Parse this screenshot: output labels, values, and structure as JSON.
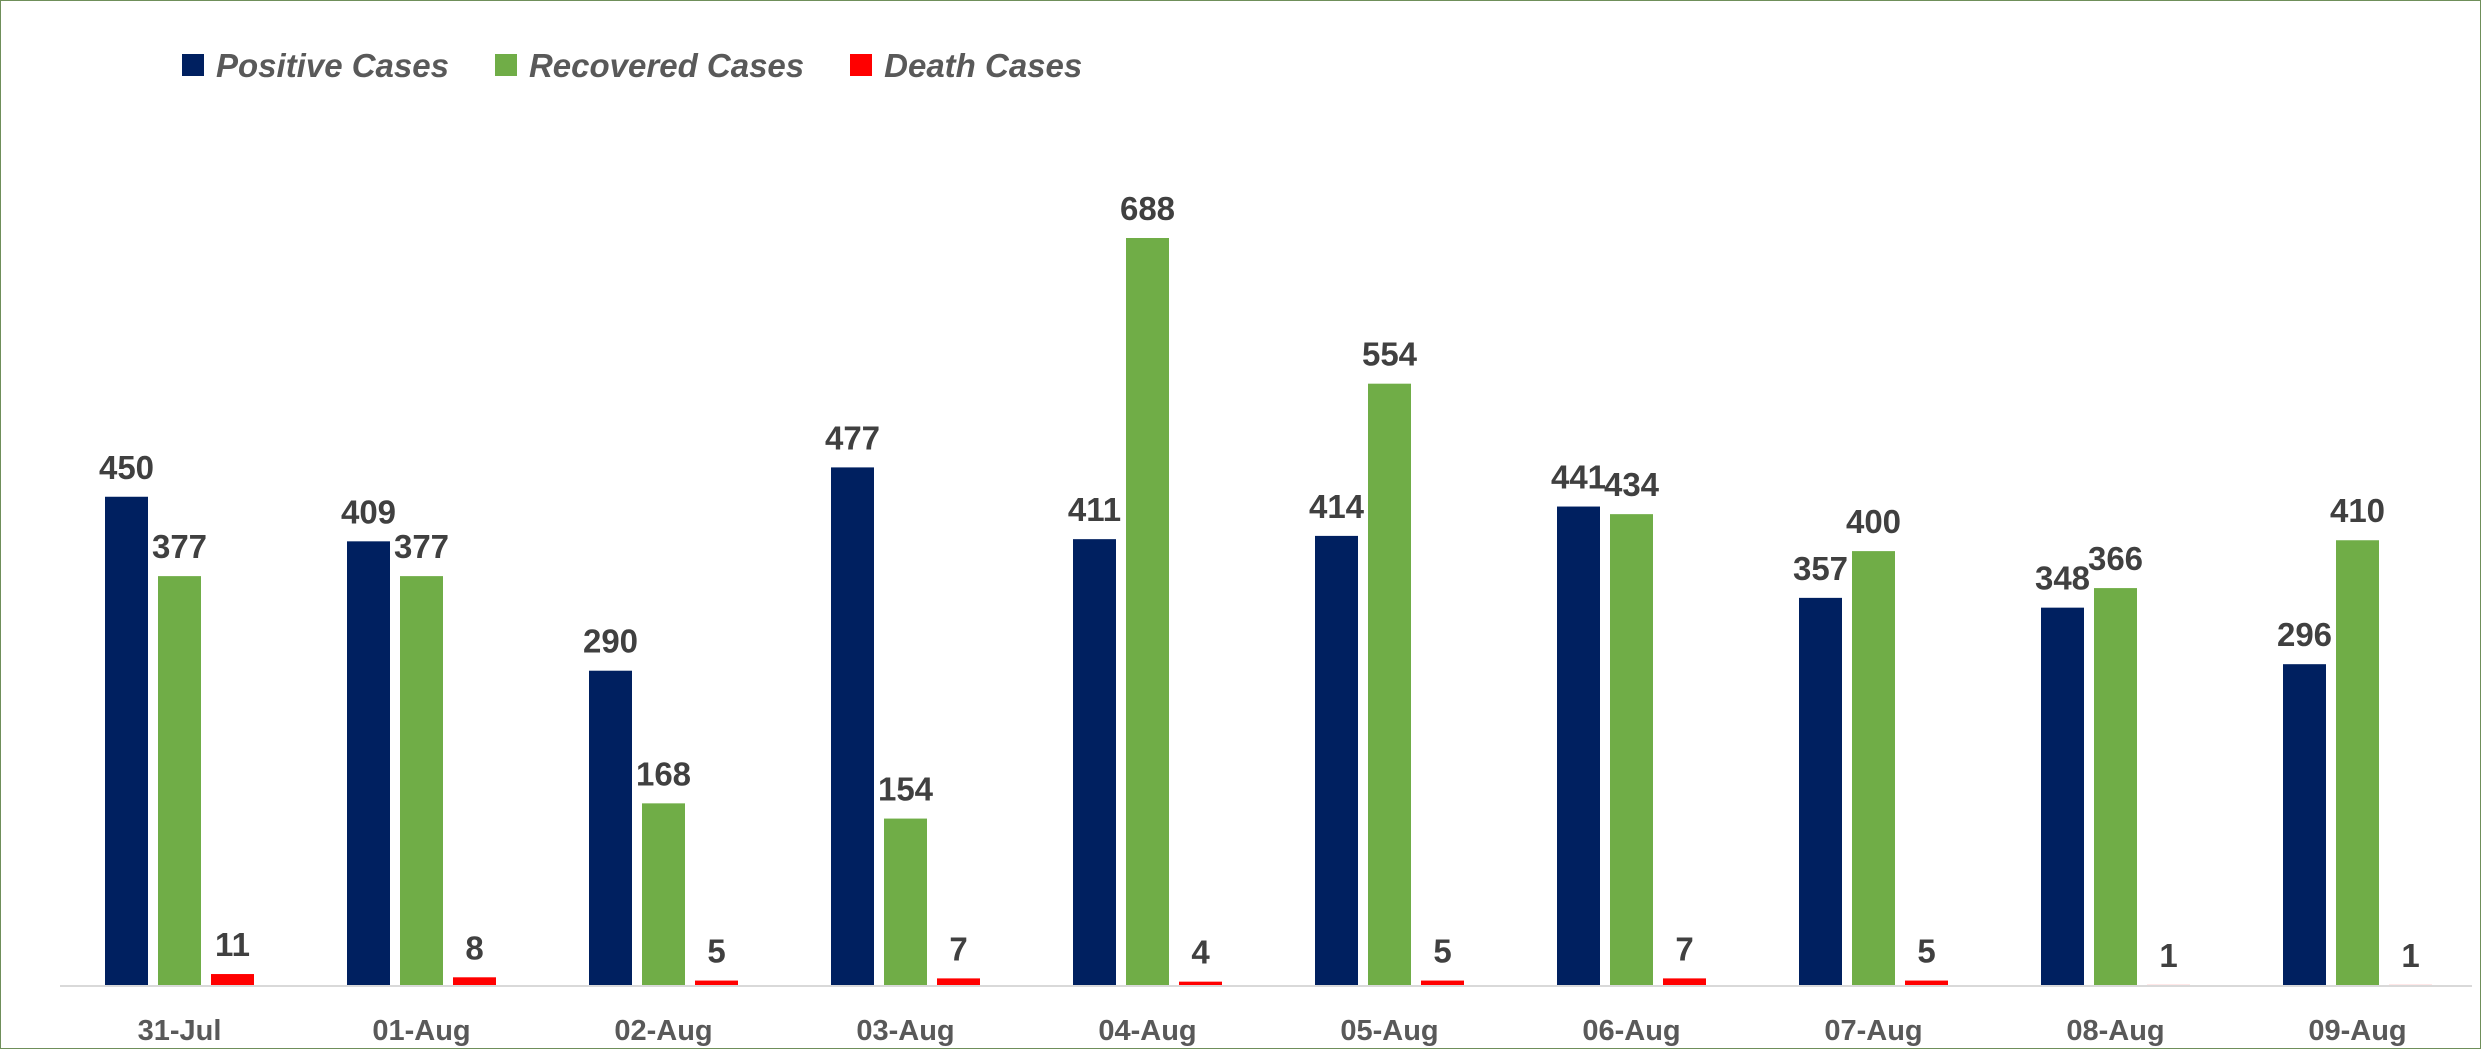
{
  "chart_data": {
    "type": "bar",
    "title": "",
    "xlabel": "",
    "ylabel": "",
    "ylim": [
      0,
      760
    ],
    "grid": false,
    "legend_position": "top-left",
    "categories": [
      "31-Jul",
      "01-Aug",
      "02-Aug",
      "03-Aug",
      "04-Aug",
      "05-Aug",
      "06-Aug",
      "07-Aug",
      "08-Aug",
      "09-Aug"
    ],
    "series": [
      {
        "name": "Positive Cases",
        "color": "#002060",
        "values": [
          450,
          409,
          290,
          477,
          411,
          414,
          441,
          357,
          348,
          296
        ]
      },
      {
        "name": "Recovered Cases",
        "color": "#70ad47",
        "values": [
          377,
          377,
          168,
          154,
          688,
          554,
          434,
          400,
          366,
          410
        ]
      },
      {
        "name": "Death Cases",
        "color": "#ff0000",
        "values": [
          11,
          8,
          5,
          7,
          4,
          5,
          7,
          5,
          1,
          1
        ]
      }
    ]
  }
}
